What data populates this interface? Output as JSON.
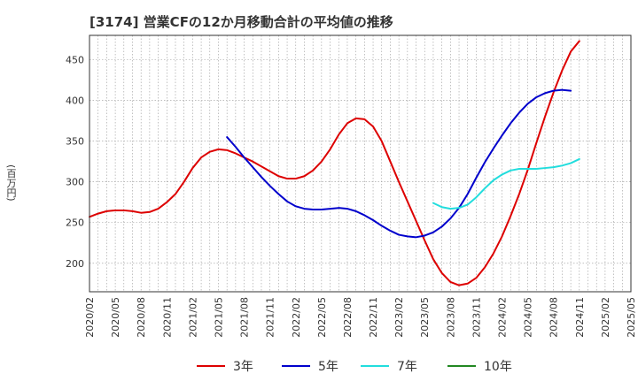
{
  "chart_data": {
    "type": "line",
    "title": "[3174]  営業CFの12か月移動合計の平均値の推移",
    "ylabel": "(百万円)",
    "xlabel": "",
    "ylim": [
      165,
      480
    ],
    "yticks": [
      200,
      250,
      300,
      350,
      400,
      450
    ],
    "xticks": [
      "2020/02",
      "2020/05",
      "2020/08",
      "2020/11",
      "2021/02",
      "2021/05",
      "2021/08",
      "2021/11",
      "2022/02",
      "2022/05",
      "2022/08",
      "2022/11",
      "2023/02",
      "2023/05",
      "2023/08",
      "2023/11",
      "2024/02",
      "2024/05",
      "2024/08",
      "2024/11",
      "2025/02",
      "2025/05"
    ],
    "grid": true,
    "legend_position": "bottom",
    "colors": {
      "3年": "#dd0000",
      "5年": "#0000cc",
      "7年": "#22dddd",
      "10年": "#228822"
    },
    "series": [
      {
        "name": "3年",
        "color": "#dd0000",
        "points": [
          [
            "2020/02",
            257
          ],
          [
            "2020/03",
            261
          ],
          [
            "2020/04",
            264
          ],
          [
            "2020/05",
            265
          ],
          [
            "2020/06",
            265
          ],
          [
            "2020/07",
            264
          ],
          [
            "2020/08",
            262
          ],
          [
            "2020/09",
            263
          ],
          [
            "2020/10",
            267
          ],
          [
            "2020/11",
            275
          ],
          [
            "2020/12",
            285
          ],
          [
            "2021/01",
            300
          ],
          [
            "2021/02",
            317
          ],
          [
            "2021/03",
            330
          ],
          [
            "2021/04",
            337
          ],
          [
            "2021/05",
            340
          ],
          [
            "2021/06",
            339
          ],
          [
            "2021/07",
            335
          ],
          [
            "2021/08",
            330
          ],
          [
            "2021/09",
            325
          ],
          [
            "2021/10",
            319
          ],
          [
            "2021/11",
            313
          ],
          [
            "2021/12",
            307
          ],
          [
            "2022/01",
            304
          ],
          [
            "2022/02",
            304
          ],
          [
            "2022/03",
            307
          ],
          [
            "2022/04",
            314
          ],
          [
            "2022/05",
            325
          ],
          [
            "2022/06",
            340
          ],
          [
            "2022/07",
            358
          ],
          [
            "2022/08",
            372
          ],
          [
            "2022/09",
            378
          ],
          [
            "2022/10",
            377
          ],
          [
            "2022/11",
            368
          ],
          [
            "2022/12",
            350
          ],
          [
            "2023/01",
            325
          ],
          [
            "2023/02",
            300
          ],
          [
            "2023/03",
            276
          ],
          [
            "2023/04",
            252
          ],
          [
            "2023/05",
            228
          ],
          [
            "2023/06",
            205
          ],
          [
            "2023/07",
            188
          ],
          [
            "2023/08",
            177
          ],
          [
            "2023/09",
            173
          ],
          [
            "2023/10",
            175
          ],
          [
            "2023/11",
            182
          ],
          [
            "2023/12",
            195
          ],
          [
            "2024/01",
            212
          ],
          [
            "2024/02",
            233
          ],
          [
            "2024/03",
            258
          ],
          [
            "2024/04",
            285
          ],
          [
            "2024/05",
            315
          ],
          [
            "2024/06",
            348
          ],
          [
            "2024/07",
            380
          ],
          [
            "2024/08",
            410
          ],
          [
            "2024/09",
            437
          ],
          [
            "2024/10",
            460
          ],
          [
            "2024/11",
            473
          ]
        ]
      },
      {
        "name": "5年",
        "color": "#0000cc",
        "points": [
          [
            "2021/06",
            355
          ],
          [
            "2021/07",
            343
          ],
          [
            "2021/08",
            330
          ],
          [
            "2021/09",
            318
          ],
          [
            "2021/10",
            306
          ],
          [
            "2021/11",
            295
          ],
          [
            "2021/12",
            285
          ],
          [
            "2022/01",
            276
          ],
          [
            "2022/02",
            270
          ],
          [
            "2022/03",
            267
          ],
          [
            "2022/04",
            266
          ],
          [
            "2022/05",
            266
          ],
          [
            "2022/06",
            267
          ],
          [
            "2022/07",
            268
          ],
          [
            "2022/08",
            267
          ],
          [
            "2022/09",
            264
          ],
          [
            "2022/10",
            259
          ],
          [
            "2022/11",
            253
          ],
          [
            "2022/12",
            246
          ],
          [
            "2023/01",
            240
          ],
          [
            "2023/02",
            235
          ],
          [
            "2023/03",
            233
          ],
          [
            "2023/04",
            232
          ],
          [
            "2023/05",
            234
          ],
          [
            "2023/06",
            238
          ],
          [
            "2023/07",
            245
          ],
          [
            "2023/08",
            255
          ],
          [
            "2023/09",
            268
          ],
          [
            "2023/10",
            285
          ],
          [
            "2023/11",
            305
          ],
          [
            "2023/12",
            324
          ],
          [
            "2024/01",
            341
          ],
          [
            "2024/02",
            357
          ],
          [
            "2024/03",
            372
          ],
          [
            "2024/04",
            385
          ],
          [
            "2024/05",
            396
          ],
          [
            "2024/06",
            404
          ],
          [
            "2024/07",
            409
          ],
          [
            "2024/08",
            412
          ],
          [
            "2024/09",
            413
          ],
          [
            "2024/10",
            412
          ]
        ]
      },
      {
        "name": "7年",
        "color": "#22dddd",
        "points": [
          [
            "2023/06",
            274
          ],
          [
            "2023/07",
            269
          ],
          [
            "2023/08",
            267
          ],
          [
            "2023/09",
            268
          ],
          [
            "2023/10",
            272
          ],
          [
            "2023/11",
            281
          ],
          [
            "2023/12",
            292
          ],
          [
            "2024/01",
            302
          ],
          [
            "2024/02",
            309
          ],
          [
            "2024/03",
            314
          ],
          [
            "2024/04",
            316
          ],
          [
            "2024/05",
            316
          ],
          [
            "2024/06",
            316
          ],
          [
            "2024/07",
            317
          ],
          [
            "2024/08",
            318
          ],
          [
            "2024/09",
            320
          ],
          [
            "2024/10",
            323
          ],
          [
            "2024/11",
            328
          ]
        ]
      },
      {
        "name": "10年",
        "color": "#228822",
        "points": []
      }
    ]
  }
}
